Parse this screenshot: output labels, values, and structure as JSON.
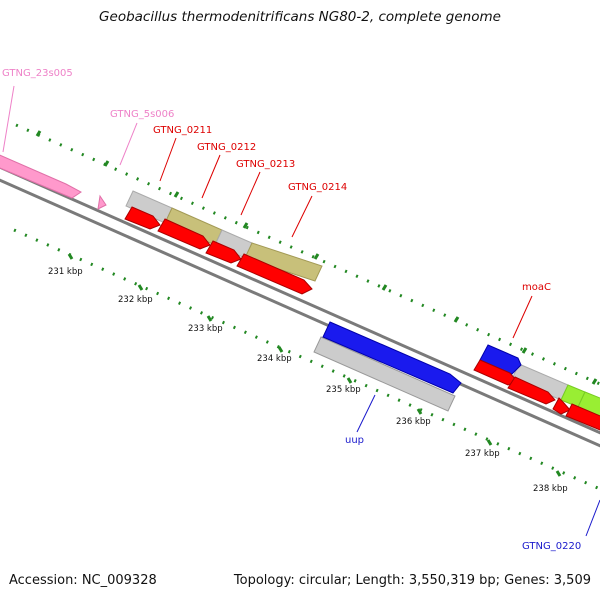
{
  "title": "Geobacillus thermodenitrificans NG80-2, complete genome",
  "footer": {
    "accession": "Accession: NC_009328",
    "topology": "Topology: circular; Length: 3,550,319 bp; Genes: 3,509"
  },
  "ruler_labels": [
    "231 kbp",
    "232 kbp",
    "233 kbp",
    "234 kbp",
    "235 kbp",
    "236 kbp",
    "237 kbp",
    "238 kbp"
  ],
  "gene_labels": {
    "gtng_23s005": "GTNG_23s005",
    "gtng_5s006": "GTNG_5s006",
    "gtng_0211": "GTNG_0211",
    "gtng_0212": "GTNG_0212",
    "gtng_0213": "GTNG_0213",
    "gtng_0214": "GTNG_0214",
    "moac": "moaC",
    "uup": "uup",
    "gtng_0220": "GTNG_0220"
  },
  "colors": {
    "rrna": "#ff99cc",
    "rrna_label": "#ee82c8",
    "cds": "#ff0000",
    "cds_label": "#dd0000",
    "gray_feature": "#cccccc",
    "olive_feature": "#c8c07a",
    "blue_feature": "#1a1aee",
    "blue_label": "#1a1acc",
    "green_feature": "#99ee33",
    "backbone": "#808080",
    "tick": "#228822"
  }
}
